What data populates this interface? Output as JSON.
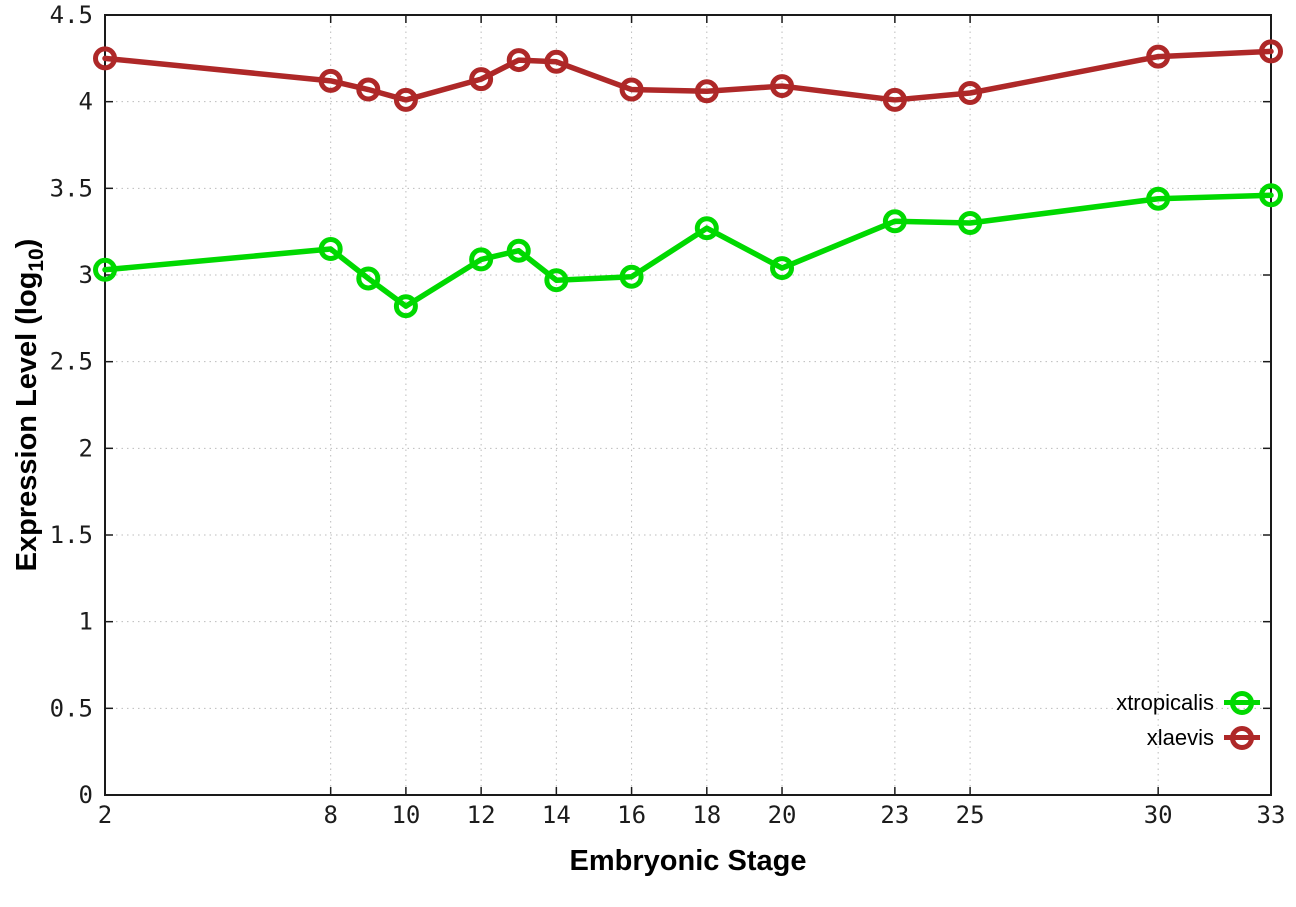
{
  "chart_data": {
    "type": "line",
    "x": [
      2,
      8,
      9,
      10,
      12,
      13,
      14,
      16,
      18,
      20,
      23,
      25,
      30,
      33
    ],
    "series": [
      {
        "name": "xtropicalis",
        "color": "#00d900",
        "values": [
          3.03,
          3.15,
          2.98,
          2.82,
          3.09,
          3.14,
          2.97,
          2.99,
          3.27,
          3.04,
          3.31,
          3.3,
          3.44,
          3.46
        ]
      },
      {
        "name": "xlaevis",
        "color": "#ae2828",
        "values": [
          4.25,
          4.12,
          4.07,
          4.01,
          4.13,
          4.24,
          4.23,
          4.07,
          4.06,
          4.09,
          4.01,
          4.05,
          4.26,
          4.29
        ]
      }
    ],
    "xlabel": "Embryonic Stage",
    "ylabel": {
      "prefix": "Expression Level (log",
      "sub": "10",
      "suffix": ")"
    },
    "xticks": [
      2,
      8,
      10,
      12,
      14,
      16,
      18,
      20,
      23,
      25,
      30,
      33
    ],
    "yticks": [
      "0",
      "0.5",
      "1",
      "1.5",
      "2",
      "2.5",
      "3",
      "3.5",
      "4",
      "4.5"
    ],
    "xlim": [
      2,
      33
    ],
    "ylim": [
      0,
      4.5
    ],
    "grid": true,
    "legend_position": "bottom-right-inside",
    "marker": "open-circle"
  },
  "colors": {
    "background": "#ffffff",
    "axis": "#1a1a1a",
    "grid": "#bcbcbc",
    "xtropicalis": "#00d900",
    "xlaevis": "#ae2828"
  }
}
